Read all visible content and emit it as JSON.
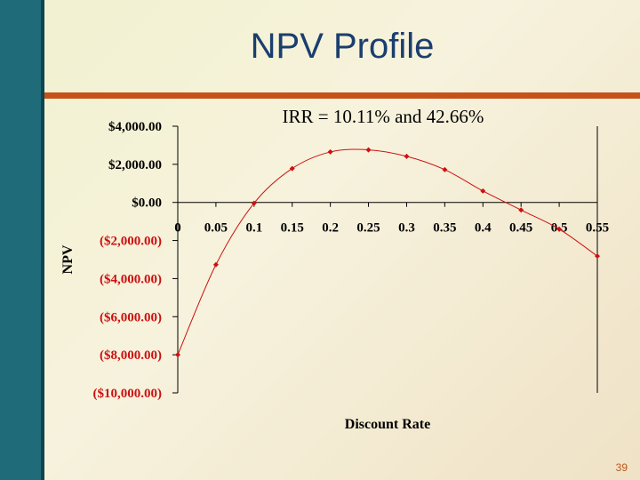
{
  "slide": {
    "title": "NPV Profile",
    "page_number": "39",
    "colors": {
      "sidebar": "#1f6b7a",
      "rule": "#c6521a",
      "title": "#1a3e6e",
      "series": "#cc1111"
    }
  },
  "chart_data": {
    "type": "scatter",
    "title": "IRR = 10.11% and 42.66%",
    "xlabel": "Discount Rate",
    "ylabel": "NPV",
    "x_ticks": [
      "0",
      "0.05",
      "0.1",
      "0.15",
      "0.2",
      "0.25",
      "0.3",
      "0.35",
      "0.4",
      "0.45",
      "0.5",
      "0.55"
    ],
    "x_tick_values": [
      0,
      0.05,
      0.1,
      0.15,
      0.2,
      0.25,
      0.3,
      0.35,
      0.4,
      0.45,
      0.5,
      0.55
    ],
    "y_ticks": [
      "$4,000.00",
      "$2,000.00",
      "$0.00",
      "($2,000.00)",
      "($4,000.00)",
      "($6,000.00)",
      "($8,000.00)",
      "($10,000.00)"
    ],
    "y_tick_values": [
      4000,
      2000,
      0,
      -2000,
      -4000,
      -6000,
      -8000,
      -10000
    ],
    "xlim": [
      0,
      0.55
    ],
    "ylim": [
      -10000,
      4000
    ],
    "grid": false,
    "x_axis_crosses_at_y": 0,
    "series": [
      {
        "x": [
          0,
          0.05,
          0.1,
          0.15,
          0.2,
          0.25,
          0.3,
          0.35,
          0.4,
          0.45,
          0.5,
          0.55
        ],
        "y": [
          -8000,
          -3270,
          -40,
          1780,
          2650,
          2760,
          2420,
          1720,
          600,
          -400,
          -1400,
          -2820
        ]
      }
    ]
  }
}
